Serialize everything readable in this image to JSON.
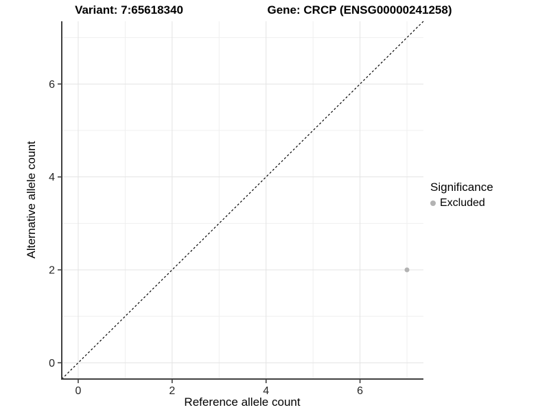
{
  "titles": {
    "variant": "Variant: 7:65618340",
    "gene": "Gene: CRCP (ENSG00000241258)"
  },
  "legend": {
    "title": "Significance",
    "entries": [
      {
        "label": "Excluded",
        "color": "#b3b3b3"
      }
    ]
  },
  "chart_data": {
    "type": "scatter",
    "title_left": "Variant: 7:65618340",
    "title_right": "Gene: CRCP (ENSG00000241258)",
    "xlabel": "Reference allele count",
    "ylabel": "Alternative allele count",
    "xlim": [
      -0.35,
      7.35
    ],
    "ylim": [
      -0.35,
      7.35
    ],
    "xticks": [
      0,
      2,
      4,
      6
    ],
    "yticks": [
      0,
      2,
      4,
      6
    ],
    "minor_xticks": [
      1,
      3,
      5,
      7
    ],
    "minor_yticks": [
      1,
      3,
      5,
      7
    ],
    "grid": true,
    "legend_position": "right",
    "series": [
      {
        "name": "Excluded",
        "color": "#b3b3b3",
        "points": [
          {
            "x": 7,
            "y": 2
          }
        ]
      }
    ],
    "reference_line": {
      "type": "identity y=x",
      "style": "dashed",
      "color": "#000000"
    }
  },
  "colors": {
    "background": "#ffffff",
    "major_grid": "#e3e3e3",
    "minor_grid": "#efefef",
    "axis_line": "#404040",
    "tick_mark": "#333333",
    "tick_label": "#262626",
    "point": "#b3b3b3"
  }
}
